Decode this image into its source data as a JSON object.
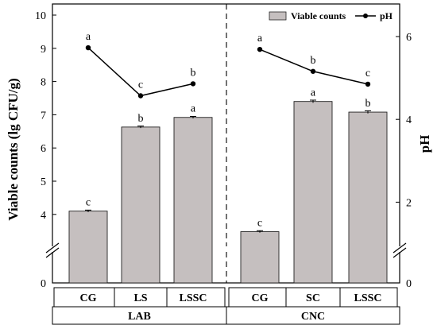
{
  "chart_data": {
    "type": "bar",
    "ylabel": "Viable counts (lg CFU/g)",
    "y2label": "pH",
    "y_ticks": [
      "10",
      "9",
      "8",
      "7",
      "6",
      "5",
      "4",
      "0"
    ],
    "y2_ticks": [
      "6",
      "4",
      "2",
      "0"
    ],
    "legend": {
      "position": "top-right",
      "bar_label": "Viable counts",
      "line_label": "pH"
    },
    "groups": [
      {
        "name": "LAB",
        "categories": [
          "CG",
          "LS",
          "LSSC"
        ],
        "viable_counts": [
          4.1,
          6.63,
          6.92
        ],
        "viable_counts_error": [
          0.03,
          0.03,
          0.03
        ],
        "viable_letters": [
          "c",
          "b",
          "a"
        ],
        "ph": [
          5.73,
          4.57,
          4.86
        ],
        "ph_letters": [
          "a",
          "c",
          "b"
        ]
      },
      {
        "name": "CNC",
        "categories": [
          "CG",
          "SC",
          "LSSC"
        ],
        "viable_counts": [
          3.48,
          7.4,
          7.08
        ],
        "viable_counts_error": [
          0.03,
          0.04,
          0.04
        ],
        "viable_letters": [
          "c",
          "a",
          "b"
        ],
        "ph": [
          5.69,
          5.16,
          4.85
        ],
        "ph_letters": [
          "a",
          "b",
          "c"
        ]
      }
    ],
    "colors": {
      "bar": "#c5bfbf",
      "bar_edge": "#222222",
      "line": "#000000"
    }
  }
}
